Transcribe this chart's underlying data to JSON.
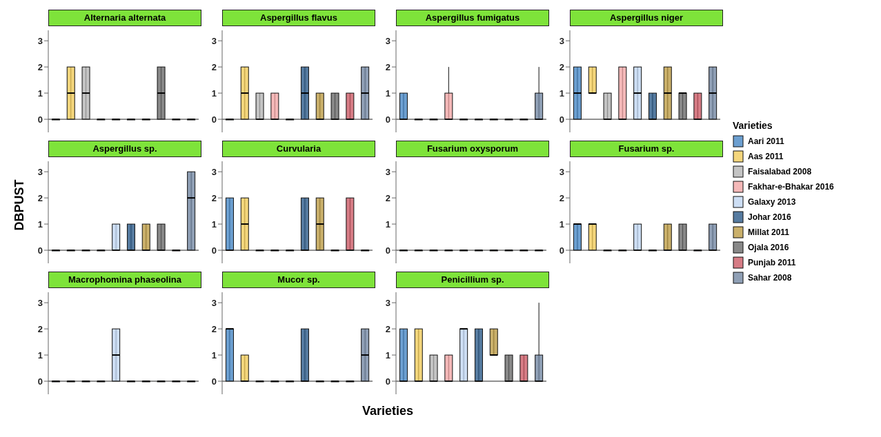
{
  "chart_data": [
    {
      "type": "box",
      "title": "Alternaria alternata",
      "categories": [
        null
      ],
      "ylim": [
        -0.5,
        3.4
      ],
      "yticks": [
        0,
        1,
        2,
        3
      ],
      "tick_labels": "y",
      "ref_lines": [
        {
          "axis": "y",
          "value": 0
        }
      ],
      "series": [
        {
          "color": "#3b7fc0",
          "boxes": [
            {
              "low": 0,
              "q1": 0,
              "median": 0,
              "q3": 0,
              "high": 0
            }
          ]
        },
        {
          "color": "#f0c850",
          "boxes": [
            {
              "low": 0,
              "q1": 0,
              "median": 1,
              "q3": 2,
              "high": 2
            }
          ]
        },
        {
          "color": "#b0b0b0",
          "boxes": [
            {
              "low": 0,
              "q1": 0,
              "median": 1,
              "q3": 2,
              "high": 2
            }
          ]
        },
        {
          "color": "#f0a0a0",
          "boxes": [
            {
              "low": 0,
              "q1": 0,
              "median": 0,
              "q3": 0,
              "high": 0
            }
          ]
        },
        {
          "color": "#bcd3f0",
          "boxes": [
            {
              "low": 0,
              "q1": 0,
              "median": 0,
              "q3": 0,
              "high": 0
            }
          ]
        },
        {
          "color": "#1d4f80",
          "boxes": [
            {
              "low": 0,
              "q1": 0,
              "median": 0,
              "q3": 0,
              "high": 0
            }
          ]
        },
        {
          "color": "#b8963a",
          "boxes": [
            {
              "low": 0,
              "q1": 0,
              "median": 0,
              "q3": 0,
              "high": 0
            }
          ]
        },
        {
          "color": "#606060",
          "boxes": [
            {
              "low": 0,
              "q1": 0,
              "median": 1,
              "q3": 2,
              "high": 2
            }
          ]
        },
        {
          "color": "#c8505c",
          "boxes": [
            {
              "low": 0,
              "q1": 0,
              "median": 0,
              "q3": 0,
              "high": 0
            }
          ]
        },
        {
          "color": "#6a7f9c",
          "boxes": [
            {
              "low": 0,
              "q1": 0,
              "median": 0,
              "q3": 0,
              "high": 0
            }
          ]
        }
      ]
    },
    {
      "type": "box",
      "title": "Aspergillus flavus",
      "categories": [
        null
      ],
      "ylim": [
        -0.5,
        3.4
      ],
      "yticks": [
        0,
        1,
        2,
        3
      ],
      "tick_labels": "y",
      "ref_lines": [
        {
          "axis": "y",
          "value": 0
        }
      ],
      "series": [
        {
          "color": "#3b7fc0",
          "boxes": [
            {
              "low": 0,
              "q1": 0,
              "median": 0,
              "q3": 0,
              "high": 0
            }
          ]
        },
        {
          "color": "#f0c850",
          "boxes": [
            {
              "low": 0,
              "q1": 0,
              "median": 1,
              "q3": 2,
              "high": 2
            }
          ]
        },
        {
          "color": "#b0b0b0",
          "boxes": [
            {
              "low": 0,
              "q1": 0,
              "median": 0,
              "q3": 1,
              "high": 1
            }
          ]
        },
        {
          "color": "#f0a0a0",
          "boxes": [
            {
              "low": 0,
              "q1": 0,
              "median": 0,
              "q3": 1,
              "high": 1
            }
          ]
        },
        {
          "color": "#bcd3f0",
          "boxes": [
            {
              "low": 0,
              "q1": 0,
              "median": 0,
              "q3": 0,
              "high": 0
            }
          ]
        },
        {
          "color": "#1d4f80",
          "boxes": [
            {
              "low": 0,
              "q1": 0,
              "median": 1,
              "q3": 2,
              "high": 2
            }
          ]
        },
        {
          "color": "#b8963a",
          "boxes": [
            {
              "low": 0,
              "q1": 0,
              "median": 0,
              "q3": 1,
              "high": 1
            }
          ]
        },
        {
          "color": "#606060",
          "boxes": [
            {
              "low": 0,
              "q1": 0,
              "median": 0,
              "q3": 1,
              "high": 1
            }
          ]
        },
        {
          "color": "#c8505c",
          "boxes": [
            {
              "low": 0,
              "q1": 0,
              "median": 0,
              "q3": 1,
              "high": 1
            }
          ]
        },
        {
          "color": "#6a7f9c",
          "boxes": [
            {
              "low": 0,
              "q1": 0,
              "median": 1,
              "q3": 2,
              "high": 2
            }
          ]
        }
      ]
    },
    {
      "type": "box",
      "title": "Aspergillus fumigatus",
      "categories": [
        null
      ],
      "ylim": [
        -0.5,
        3.4
      ],
      "yticks": [
        0,
        1,
        2,
        3
      ],
      "tick_labels": "y",
      "ref_lines": [
        {
          "axis": "y",
          "value": 0
        }
      ],
      "series": [
        {
          "color": "#3b7fc0",
          "boxes": [
            {
              "low": 0,
              "q1": 0,
              "median": 0,
              "q3": 1,
              "high": 1
            }
          ]
        },
        {
          "color": "#f0c850",
          "boxes": [
            {
              "low": 0,
              "q1": 0,
              "median": 0,
              "q3": 0,
              "high": 0
            }
          ]
        },
        {
          "color": "#b0b0b0",
          "boxes": [
            {
              "low": 0,
              "q1": 0,
              "median": 0,
              "q3": 0,
              "high": 0
            }
          ]
        },
        {
          "color": "#f0a0a0",
          "boxes": [
            {
              "low": 0,
              "q1": 0,
              "median": 0,
              "q3": 1,
              "high": 2
            }
          ]
        },
        {
          "color": "#bcd3f0",
          "boxes": [
            {
              "low": 0,
              "q1": 0,
              "median": 0,
              "q3": 0,
              "high": 0
            }
          ]
        },
        {
          "color": "#1d4f80",
          "boxes": [
            {
              "low": 0,
              "q1": 0,
              "median": 0,
              "q3": 0,
              "high": 0
            }
          ]
        },
        {
          "color": "#b8963a",
          "boxes": [
            {
              "low": 0,
              "q1": 0,
              "median": 0,
              "q3": 0,
              "high": 0
            }
          ]
        },
        {
          "color": "#606060",
          "boxes": [
            {
              "low": 0,
              "q1": 0,
              "median": 0,
              "q3": 0,
              "high": 0
            }
          ]
        },
        {
          "color": "#c8505c",
          "boxes": [
            {
              "low": 0,
              "q1": 0,
              "median": 0,
              "q3": 0,
              "high": 0
            }
          ]
        },
        {
          "color": "#6a7f9c",
          "boxes": [
            {
              "low": 0,
              "q1": 0,
              "median": 0,
              "q3": 1,
              "high": 2
            }
          ]
        }
      ]
    },
    {
      "type": "box",
      "title": "Aspergillus niger",
      "categories": [
        null
      ],
      "ylim": [
        -0.5,
        3.4
      ],
      "yticks": [
        0,
        1,
        2,
        3
      ],
      "tick_labels": "y",
      "ref_lines": [
        {
          "axis": "y",
          "value": 0
        }
      ],
      "series": [
        {
          "color": "#3b7fc0",
          "boxes": [
            {
              "low": 0,
              "q1": 0,
              "median": 1,
              "q3": 2,
              "high": 2
            }
          ]
        },
        {
          "color": "#f0c850",
          "boxes": [
            {
              "low": 1,
              "q1": 1,
              "median": 1,
              "q3": 2,
              "high": 2
            }
          ]
        },
        {
          "color": "#b0b0b0",
          "boxes": [
            {
              "low": 0,
              "q1": 0,
              "median": 0,
              "q3": 1,
              "high": 1
            }
          ]
        },
        {
          "color": "#f0a0a0",
          "boxes": [
            {
              "low": 0,
              "q1": 0,
              "median": 0,
              "q3": 2,
              "high": 2
            }
          ]
        },
        {
          "color": "#bcd3f0",
          "boxes": [
            {
              "low": 0,
              "q1": 0,
              "median": 1,
              "q3": 2,
              "high": 2
            }
          ]
        },
        {
          "color": "#1d4f80",
          "boxes": [
            {
              "low": 0,
              "q1": 0,
              "median": 0,
              "q3": 1,
              "high": 1
            }
          ]
        },
        {
          "color": "#b8963a",
          "boxes": [
            {
              "low": 0,
              "q1": 0,
              "median": 1,
              "q3": 2,
              "high": 2
            }
          ]
        },
        {
          "color": "#606060",
          "boxes": [
            {
              "low": 0,
              "q1": 0,
              "median": 1,
              "q3": 1,
              "high": 1
            }
          ]
        },
        {
          "color": "#c8505c",
          "boxes": [
            {
              "low": 0,
              "q1": 0,
              "median": 0,
              "q3": 1,
              "high": 1
            }
          ]
        },
        {
          "color": "#6a7f9c",
          "boxes": [
            {
              "low": 0,
              "q1": 0,
              "median": 1,
              "q3": 2,
              "high": 2
            }
          ]
        }
      ]
    },
    {
      "type": "box",
      "title": "Aspergillus sp.",
      "ylabel": "DBPUST",
      "categories": [
        null
      ],
      "ylim": [
        -0.5,
        3.4
      ],
      "yticks": [
        0,
        1,
        2,
        3
      ],
      "tick_labels": "y",
      "ref_lines": [
        {
          "axis": "y",
          "value": 0
        }
      ],
      "series": [
        {
          "color": "#3b7fc0",
          "boxes": [
            {
              "low": 0,
              "q1": 0,
              "median": 0,
              "q3": 0,
              "high": 0
            }
          ]
        },
        {
          "color": "#f0c850",
          "boxes": [
            {
              "low": 0,
              "q1": 0,
              "median": 0,
              "q3": 0,
              "high": 0
            }
          ]
        },
        {
          "color": "#b0b0b0",
          "boxes": [
            {
              "low": 0,
              "q1": 0,
              "median": 0,
              "q3": 0,
              "high": 0
            }
          ]
        },
        {
          "color": "#f0a0a0",
          "boxes": [
            {
              "low": 0,
              "q1": 0,
              "median": 0,
              "q3": 0,
              "high": 0
            }
          ]
        },
        {
          "color": "#bcd3f0",
          "boxes": [
            {
              "low": 0,
              "q1": 0,
              "median": 0,
              "q3": 1,
              "high": 1
            }
          ]
        },
        {
          "color": "#1d4f80",
          "boxes": [
            {
              "low": 0,
              "q1": 0,
              "median": 0,
              "q3": 1,
              "high": 1
            }
          ]
        },
        {
          "color": "#b8963a",
          "boxes": [
            {
              "low": 0,
              "q1": 0,
              "median": 0,
              "q3": 1,
              "high": 1
            }
          ]
        },
        {
          "color": "#606060",
          "boxes": [
            {
              "low": 0,
              "q1": 0,
              "median": 0,
              "q3": 1,
              "high": 1
            }
          ]
        },
        {
          "color": "#c8505c",
          "boxes": [
            {
              "low": 0,
              "q1": 0,
              "median": 0,
              "q3": 0,
              "high": 0
            }
          ]
        },
        {
          "color": "#6a7f9c",
          "boxes": [
            {
              "low": 0,
              "q1": 0,
              "median": 2,
              "q3": 3,
              "high": 3
            }
          ]
        }
      ]
    },
    {
      "type": "box",
      "title": "Curvularia",
      "categories": [
        null
      ],
      "ylim": [
        -0.5,
        3.4
      ],
      "yticks": [
        0,
        1,
        2,
        3
      ],
      "tick_labels": "y",
      "ref_lines": [
        {
          "axis": "y",
          "value": 0
        }
      ],
      "series": [
        {
          "color": "#3b7fc0",
          "boxes": [
            {
              "low": 0,
              "q1": 0,
              "median": 0,
              "q3": 2,
              "high": 2
            }
          ]
        },
        {
          "color": "#f0c850",
          "boxes": [
            {
              "low": 0,
              "q1": 0,
              "median": 1,
              "q3": 2,
              "high": 2
            }
          ]
        },
        {
          "color": "#b0b0b0",
          "boxes": [
            {
              "low": 0,
              "q1": 0,
              "median": 0,
              "q3": 0,
              "high": 0
            }
          ]
        },
        {
          "color": "#f0a0a0",
          "boxes": [
            {
              "low": 0,
              "q1": 0,
              "median": 0,
              "q3": 0,
              "high": 0
            }
          ]
        },
        {
          "color": "#bcd3f0",
          "boxes": [
            {
              "low": 0,
              "q1": 0,
              "median": 0,
              "q3": 0,
              "high": 0
            }
          ]
        },
        {
          "color": "#1d4f80",
          "boxes": [
            {
              "low": 0,
              "q1": 0,
              "median": 0,
              "q3": 2,
              "high": 2
            }
          ]
        },
        {
          "color": "#b8963a",
          "boxes": [
            {
              "low": 0,
              "q1": 0,
              "median": 1,
              "q3": 2,
              "high": 2
            }
          ]
        },
        {
          "color": "#606060",
          "boxes": [
            {
              "low": 0,
              "q1": 0,
              "median": 0,
              "q3": 0,
              "high": 0
            }
          ]
        },
        {
          "color": "#c8505c",
          "boxes": [
            {
              "low": 0,
              "q1": 0,
              "median": 0,
              "q3": 2,
              "high": 2
            }
          ]
        },
        {
          "color": "#6a7f9c",
          "boxes": [
            {
              "low": 0,
              "q1": 0,
              "median": 0,
              "q3": 0,
              "high": 0
            }
          ]
        }
      ]
    },
    {
      "type": "box",
      "title": "Fusarium oxysporum",
      "categories": [
        null
      ],
      "ylim": [
        -0.5,
        3.4
      ],
      "yticks": [
        0,
        1,
        2,
        3
      ],
      "tick_labels": "y",
      "ref_lines": [
        {
          "axis": "y",
          "value": 0
        }
      ],
      "series": [
        {
          "color": "#3b7fc0",
          "boxes": [
            {
              "low": 0,
              "q1": 0,
              "median": 0,
              "q3": 0,
              "high": 0
            }
          ]
        },
        {
          "color": "#f0c850",
          "boxes": [
            {
              "low": 0,
              "q1": 0,
              "median": 0,
              "q3": 0,
              "high": 0
            }
          ]
        },
        {
          "color": "#b0b0b0",
          "boxes": [
            {
              "low": 0,
              "q1": 0,
              "median": 0,
              "q3": 0,
              "high": 0
            }
          ]
        },
        {
          "color": "#f0a0a0",
          "boxes": [
            {
              "low": 0,
              "q1": 0,
              "median": 0,
              "q3": 0,
              "high": 0
            }
          ]
        },
        {
          "color": "#bcd3f0",
          "boxes": [
            {
              "low": 0,
              "q1": 0,
              "median": 0,
              "q3": 0,
              "high": 0
            }
          ]
        },
        {
          "color": "#1d4f80",
          "boxes": [
            {
              "low": 0,
              "q1": 0,
              "median": 0,
              "q3": 0,
              "high": 0
            }
          ]
        },
        {
          "color": "#b8963a",
          "boxes": [
            {
              "low": 0,
              "q1": 0,
              "median": 0,
              "q3": 0,
              "high": 0
            }
          ]
        },
        {
          "color": "#606060",
          "boxes": [
            {
              "low": 0,
              "q1": 0,
              "median": 0,
              "q3": 0,
              "high": 0
            }
          ]
        },
        {
          "color": "#c8505c",
          "boxes": [
            {
              "low": 0,
              "q1": 0,
              "median": 0,
              "q3": 0,
              "high": 0
            }
          ]
        },
        {
          "color": "#6a7f9c",
          "boxes": [
            {
              "low": 0,
              "q1": 0,
              "median": 0,
              "q3": 0,
              "high": 0
            }
          ]
        }
      ]
    },
    {
      "type": "box",
      "title": "Fusarium sp.",
      "legend": "right",
      "legend_title": "Varieties",
      "categories": [
        null
      ],
      "ylim": [
        -0.5,
        3.4
      ],
      "yticks": [
        0,
        1,
        2,
        3
      ],
      "tick_labels": "y",
      "ref_lines": [
        {
          "axis": "y",
          "value": 0
        }
      ],
      "series": [
        {
          "name": "Aari 2011",
          "color": "#3b7fc0",
          "boxes": [
            {
              "low": 0,
              "q1": 0,
              "median": 1,
              "q3": 1,
              "high": 1
            }
          ]
        },
        {
          "name": "Aas  2011",
          "color": "#f0c850",
          "boxes": [
            {
              "low": 0,
              "q1": 0,
              "median": 1,
              "q3": 1,
              "high": 1
            }
          ]
        },
        {
          "name": "Faisalabad 2008",
          "color": "#b0b0b0",
          "boxes": [
            {
              "low": 0,
              "q1": 0,
              "median": 0,
              "q3": 0,
              "high": 0
            }
          ]
        },
        {
          "name": "Fakhar-e-Bhakar 2016",
          "color": "#f0a0a0",
          "boxes": [
            {
              "low": 0,
              "q1": 0,
              "median": 0,
              "q3": 0,
              "high": 0
            }
          ]
        },
        {
          "name": "Galaxy 2013",
          "color": "#bcd3f0",
          "boxes": [
            {
              "low": 0,
              "q1": 0,
              "median": 0,
              "q3": 1,
              "high": 1
            }
          ]
        },
        {
          "name": "Johar 2016",
          "color": "#1d4f80",
          "boxes": [
            {
              "low": 0,
              "q1": 0,
              "median": 0,
              "q3": 0,
              "high": 0
            }
          ]
        },
        {
          "name": "Millat 2011",
          "color": "#b8963a",
          "boxes": [
            {
              "low": 0,
              "q1": 0,
              "median": 0,
              "q3": 1,
              "high": 1
            }
          ]
        },
        {
          "name": "Ojala 2016",
          "color": "#606060",
          "boxes": [
            {
              "low": 0,
              "q1": 0,
              "median": 0,
              "q3": 1,
              "high": 1
            }
          ]
        },
        {
          "name": "Punjab 2011",
          "color": "#c8505c",
          "boxes": [
            {
              "low": 0,
              "q1": 0,
              "median": 0,
              "q3": 0,
              "high": 0
            }
          ]
        },
        {
          "name": "Sahar 2008",
          "color": "#6a7f9c",
          "boxes": [
            {
              "low": 0,
              "q1": 0,
              "median": 0,
              "q3": 1,
              "high": 1
            }
          ]
        }
      ]
    },
    {
      "type": "box",
      "title": "Macrophomina phaseolina",
      "categories": [
        null
      ],
      "ylim": [
        -0.5,
        3.4
      ],
      "yticks": [
        0,
        1,
        2,
        3
      ],
      "tick_labels": "y",
      "ref_lines": [
        {
          "axis": "y",
          "value": 0
        }
      ],
      "series": [
        {
          "color": "#3b7fc0",
          "boxes": [
            {
              "low": 0,
              "q1": 0,
              "median": 0,
              "q3": 0,
              "high": 0
            }
          ]
        },
        {
          "color": "#f0c850",
          "boxes": [
            {
              "low": 0,
              "q1": 0,
              "median": 0,
              "q3": 0,
              "high": 0
            }
          ]
        },
        {
          "color": "#b0b0b0",
          "boxes": [
            {
              "low": 0,
              "q1": 0,
              "median": 0,
              "q3": 0,
              "high": 0
            }
          ]
        },
        {
          "color": "#f0a0a0",
          "boxes": [
            {
              "low": 0,
              "q1": 0,
              "median": 0,
              "q3": 0,
              "high": 0
            }
          ]
        },
        {
          "color": "#bcd3f0",
          "boxes": [
            {
              "low": 0,
              "q1": 0,
              "median": 1,
              "q3": 2,
              "high": 2
            }
          ]
        },
        {
          "color": "#1d4f80",
          "boxes": [
            {
              "low": 0,
              "q1": 0,
              "median": 0,
              "q3": 0,
              "high": 0
            }
          ]
        },
        {
          "color": "#b8963a",
          "boxes": [
            {
              "low": 0,
              "q1": 0,
              "median": 0,
              "q3": 0,
              "high": 0
            }
          ]
        },
        {
          "color": "#606060",
          "boxes": [
            {
              "low": 0,
              "q1": 0,
              "median": 0,
              "q3": 0,
              "high": 0
            }
          ]
        },
        {
          "color": "#c8505c",
          "boxes": [
            {
              "low": 0,
              "q1": 0,
              "median": 0,
              "q3": 0,
              "high": 0
            }
          ]
        },
        {
          "color": "#6a7f9c",
          "boxes": [
            {
              "low": 0,
              "q1": 0,
              "median": 0,
              "q3": 0,
              "high": 0
            }
          ]
        }
      ]
    },
    {
      "type": "box",
      "title": "Mucor sp.",
      "xlabel": "Varieties",
      "categories": [
        null
      ],
      "ylim": [
        -0.5,
        3.4
      ],
      "yticks": [
        0,
        1,
        2,
        3
      ],
      "tick_labels": "y",
      "ref_lines": [
        {
          "axis": "y",
          "value": 0
        }
      ],
      "series": [
        {
          "color": "#3b7fc0",
          "boxes": [
            {
              "low": 0,
              "q1": 0,
              "median": 2,
              "q3": 2,
              "high": 2
            }
          ]
        },
        {
          "color": "#f0c850",
          "boxes": [
            {
              "low": 0,
              "q1": 0,
              "median": 0,
              "q3": 1,
              "high": 1
            }
          ]
        },
        {
          "color": "#b0b0b0",
          "boxes": [
            {
              "low": 0,
              "q1": 0,
              "median": 0,
              "q3": 0,
              "high": 0
            }
          ]
        },
        {
          "color": "#f0a0a0",
          "boxes": [
            {
              "low": 0,
              "q1": 0,
              "median": 0,
              "q3": 0,
              "high": 0
            }
          ]
        },
        {
          "color": "#bcd3f0",
          "boxes": [
            {
              "low": 0,
              "q1": 0,
              "median": 0,
              "q3": 0,
              "high": 0
            }
          ]
        },
        {
          "color": "#1d4f80",
          "boxes": [
            {
              "low": 0,
              "q1": 0,
              "median": 0,
              "q3": 2,
              "high": 2
            }
          ]
        },
        {
          "color": "#b8963a",
          "boxes": [
            {
              "low": 0,
              "q1": 0,
              "median": 0,
              "q3": 0,
              "high": 0
            }
          ]
        },
        {
          "color": "#606060",
          "boxes": [
            {
              "low": 0,
              "q1": 0,
              "median": 0,
              "q3": 0,
              "high": 0
            }
          ]
        },
        {
          "color": "#c8505c",
          "boxes": [
            {
              "low": 0,
              "q1": 0,
              "median": 0,
              "q3": 0,
              "high": 0
            }
          ]
        },
        {
          "color": "#6a7f9c",
          "boxes": [
            {
              "low": 0,
              "q1": 0,
              "median": 1,
              "q3": 2,
              "high": 2
            }
          ]
        }
      ]
    },
    {
      "type": "box",
      "title": "Penicillium sp.",
      "categories": [
        null
      ],
      "ylim": [
        -0.5,
        3.4
      ],
      "yticks": [
        0,
        1,
        2,
        3
      ],
      "tick_labels": "y",
      "ref_lines": [
        {
          "axis": "y",
          "value": 0
        }
      ],
      "series": [
        {
          "color": "#3b7fc0",
          "boxes": [
            {
              "low": 0,
              "q1": 0,
              "median": 0,
              "q3": 2,
              "high": 2
            }
          ]
        },
        {
          "color": "#f0c850",
          "boxes": [
            {
              "low": 0,
              "q1": 0,
              "median": 0,
              "q3": 2,
              "high": 2
            }
          ]
        },
        {
          "color": "#b0b0b0",
          "boxes": [
            {
              "low": 0,
              "q1": 0,
              "median": 0,
              "q3": 1,
              "high": 1
            }
          ]
        },
        {
          "color": "#f0a0a0",
          "boxes": [
            {
              "low": 0,
              "q1": 0,
              "median": 0,
              "q3": 1,
              "high": 1
            }
          ]
        },
        {
          "color": "#bcd3f0",
          "boxes": [
            {
              "low": 0,
              "q1": 0,
              "median": 2,
              "q3": 2,
              "high": 2
            }
          ]
        },
        {
          "color": "#1d4f80",
          "boxes": [
            {
              "low": 0,
              "q1": 0,
              "median": 0,
              "q3": 2,
              "high": 2
            }
          ]
        },
        {
          "color": "#b8963a",
          "boxes": [
            {
              "low": 1,
              "q1": 1,
              "median": 1,
              "q3": 2,
              "high": 2
            }
          ]
        },
        {
          "color": "#606060",
          "boxes": [
            {
              "low": 0,
              "q1": 0,
              "median": 0,
              "q3": 1,
              "high": 1
            }
          ]
        },
        {
          "color": "#c8505c",
          "boxes": [
            {
              "low": 0,
              "q1": 0,
              "median": 0,
              "q3": 1,
              "high": 1
            }
          ]
        },
        {
          "color": "#6a7f9c",
          "boxes": [
            {
              "low": 0,
              "q1": 0,
              "median": 0,
              "q3": 1,
              "high": 3
            }
          ]
        }
      ]
    }
  ]
}
